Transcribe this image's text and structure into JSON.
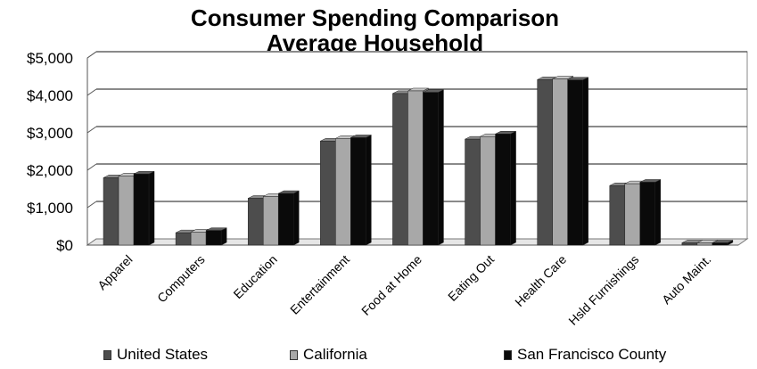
{
  "chart_data": {
    "type": "bar",
    "title": "Consumer Spending Comparison",
    "subtitle": "Average Household",
    "categories": [
      "Apparel",
      "Computers",
      "Education",
      "Entertainment",
      "Food at Home",
      "Eating Out",
      "Health Care",
      "Hsld Furnishings",
      "Auto Maint."
    ],
    "series": [
      {
        "name": "United States",
        "color": "#4d4d4d",
        "values": [
          1800,
          330,
          1250,
          2780,
          4050,
          2830,
          4420,
          1590,
          60
        ]
      },
      {
        "name": "California",
        "color": "#a8a8a8",
        "values": [
          1850,
          350,
          1300,
          2850,
          4120,
          2900,
          4440,
          1640,
          60
        ]
      },
      {
        "name": "San Francisco County",
        "color": "#0a0a0a",
        "values": [
          1900,
          390,
          1380,
          2870,
          4080,
          2970,
          4410,
          1680,
          60
        ]
      }
    ],
    "yticks": [
      "$0",
      "$1,000",
      "$2,000",
      "$3,000",
      "$4,000",
      "$5,000"
    ],
    "ylim": [
      0,
      5000
    ],
    "grid": true,
    "legend": "bottom"
  }
}
